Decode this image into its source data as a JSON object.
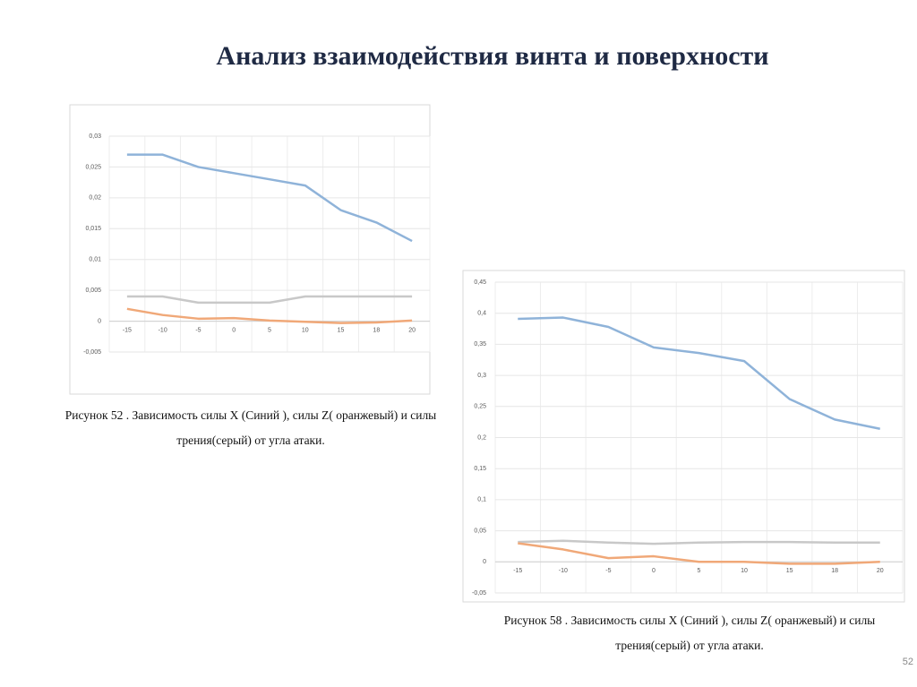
{
  "title": "Анализ взаимодействия винта и поверхности",
  "captions": [
    [
      "Рисунок 52 . Зависимость силы X (Синий ), силы Z( оранжевый) и силы",
      "трения(серый)  от угла атаки."
    ],
    [
      "Рисунок 58  . Зависимость силы X (Синий ), силы Z( оранжевый) и силы",
      "трения(серый)  от угла атаки."
    ]
  ],
  "page_number": "52",
  "chart_data": [
    {
      "type": "line",
      "categories": [
        "-15",
        "-10",
        "-5",
        "0",
        "5",
        "10",
        "15",
        "18",
        "20"
      ],
      "ylim": [
        -0.005,
        0.03
      ],
      "yticks": [
        {
          "value": -0.005,
          "label": "-0,005"
        },
        0,
        {
          "value": 0.005,
          "label": "0,005"
        },
        {
          "value": 0.01,
          "label": "0,01"
        },
        {
          "value": 0.015,
          "label": "0,015"
        },
        {
          "value": 0.02,
          "label": "0,02"
        },
        {
          "value": 0.025,
          "label": "0,025"
        },
        {
          "value": 0.03,
          "label": "0,03"
        }
      ],
      "grid": true,
      "series": [
        {
          "color": "#8fb3d9",
          "values": [
            0.027,
            0.027,
            0.025,
            0.024,
            0.023,
            0.022,
            0.018,
            0.016,
            0.013
          ]
        },
        {
          "color": "#c8c8c8",
          "values": [
            0.004,
            0.004,
            0.003,
            0.003,
            0.003,
            0.004,
            0.004,
            0.004,
            0.004
          ]
        },
        {
          "color": "#f0a878",
          "values": [
            0.002,
            0.001,
            0.0004,
            0.0005,
            0.0001,
            -0.0001,
            -0.0003,
            -0.0002,
            0.0001
          ]
        }
      ]
    },
    {
      "type": "line",
      "categories": [
        "-15",
        "-10",
        "-5",
        "0",
        "5",
        "10",
        "15",
        "18",
        "20"
      ],
      "ylim": [
        -0.05,
        0.45
      ],
      "yticks": [
        {
          "value": -0.05,
          "label": "-0,05"
        },
        0,
        {
          "value": 0.05,
          "label": "0,05"
        },
        {
          "value": 0.1,
          "label": "0,1"
        },
        {
          "value": 0.15,
          "label": "0,15"
        },
        {
          "value": 0.2,
          "label": "0,2"
        },
        {
          "value": 0.25,
          "label": "0,25"
        },
        {
          "value": 0.3,
          "label": "0,3"
        },
        {
          "value": 0.35,
          "label": "0,35"
        },
        {
          "value": 0.4,
          "label": "0,4"
        },
        {
          "value": 0.45,
          "label": "0,45"
        }
      ],
      "grid": true,
      "series": [
        {
          "color": "#8fb3d9",
          "values": [
            0.391,
            0.393,
            0.378,
            0.345,
            0.336,
            0.323,
            0.262,
            0.229,
            0.214
          ]
        },
        {
          "color": "#c8c8c8",
          "values": [
            0.032,
            0.034,
            0.031,
            0.029,
            0.031,
            0.032,
            0.032,
            0.031,
            0.031
          ]
        },
        {
          "color": "#f0a878",
          "values": [
            0.03,
            0.02,
            0.006,
            0.009,
            0,
            0,
            -0.003,
            -0.003,
            0
          ]
        }
      ]
    }
  ]
}
